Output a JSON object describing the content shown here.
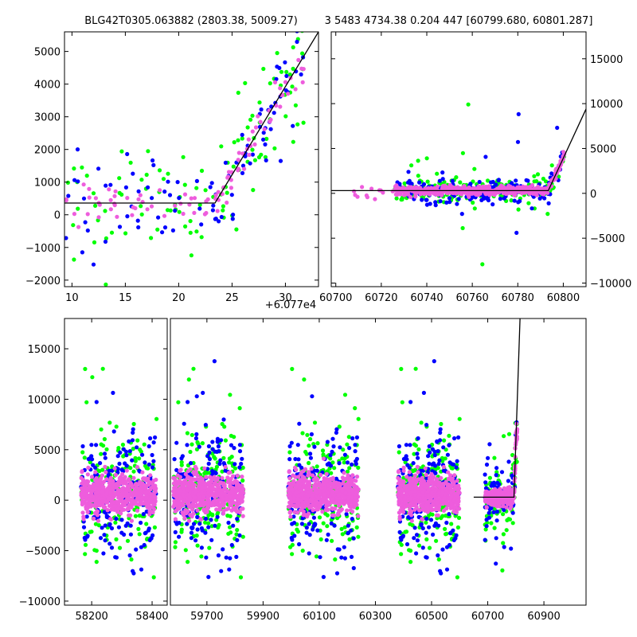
{
  "colors": {
    "green": "#00ff00",
    "blue": "#0000ff",
    "pink": "#ee5ddd",
    "line": "#000000",
    "frame": "#000000"
  },
  "chart_data": [
    {
      "panel": "top-left",
      "type": "scatter",
      "title": "BLG42T0305.063882 (2803.38, 5009.27)",
      "xlabel": "",
      "ylabel": "",
      "x_offset_label": "+6.077e4",
      "xlim": [
        9.3,
        33.1
      ],
      "ylim": [
        -2200,
        5600
      ],
      "xticks": [
        10,
        15,
        20,
        25,
        30
      ],
      "yticks": [
        -2000,
        -1000,
        0,
        1000,
        2000,
        3000,
        4000,
        5000
      ],
      "series": [
        {
          "name": "green",
          "color": "green"
        },
        {
          "name": "blue",
          "color": "blue"
        },
        {
          "name": "pink",
          "color": "pink"
        }
      ],
      "model_line": {
        "x": [
          9.3,
          23.4,
          33.1
        ],
        "y": [
          360,
          360,
          5600
        ]
      }
    },
    {
      "panel": "top-right",
      "type": "scatter",
      "title": "3 5483 4734.38 0.204 447 [60799.680, 60801.287]",
      "xlabel": "",
      "ylabel": "",
      "xlim": [
        60698,
        60810
      ],
      "ylim": [
        -10400,
        18000
      ],
      "xticks": [
        60700,
        60720,
        60740,
        60760,
        60780,
        60800
      ],
      "yticks": [
        -10000,
        -5000,
        0,
        5000,
        10000,
        15000
      ],
      "y_axis_side": "right",
      "model_line": {
        "x": [
          60698,
          60793.4,
          60810
        ],
        "y": [
          300,
          300,
          9400
        ]
      }
    },
    {
      "panel": "bottom",
      "type": "scatter",
      "title": "",
      "xlabel": "",
      "ylabel": "",
      "broken_x_axis": true,
      "segments": [
        {
          "xlim": [
            58110,
            58450
          ],
          "xticks": [
            58200,
            58400
          ]
        },
        {
          "xlim": [
            59570,
            61050
          ],
          "xticks": [
            59700,
            59900,
            60100,
            60300,
            60500,
            60700,
            60900
          ]
        }
      ],
      "ylim": [
        -10400,
        18000
      ],
      "yticks": [
        -10000,
        -5000,
        0,
        5000,
        10000,
        15000
      ],
      "data_groups": [
        58165,
        58415,
        59580,
        59830,
        59990,
        60240,
        60380,
        60600,
        60690,
        60805
      ],
      "model_line": {
        "x": [
          60650,
          60793.4,
          60815
        ],
        "y": [
          300,
          300,
          18000
        ]
      }
    }
  ]
}
